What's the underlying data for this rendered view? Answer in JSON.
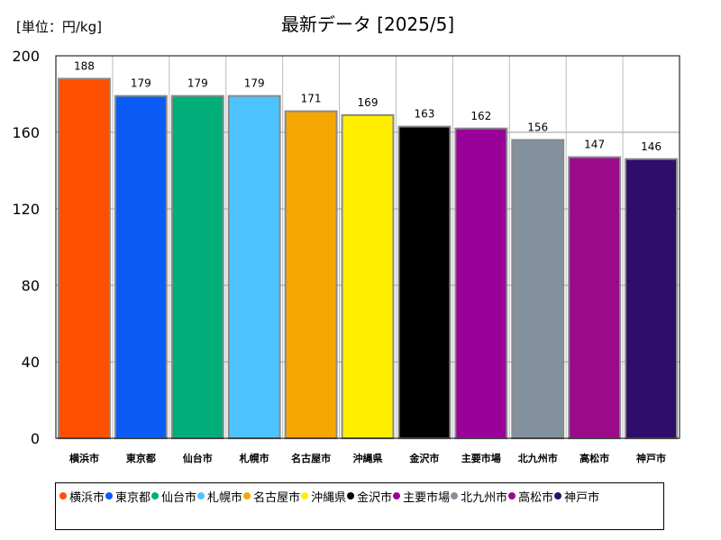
{
  "chart_data": {
    "type": "bar",
    "title": "最新データ [2025/5]",
    "unit_label": "[単位：円/kg]",
    "categories": [
      "横浜市",
      "東京都",
      "仙台市",
      "札幌市",
      "名古屋市",
      "沖縄県",
      "金沢市",
      "主要市場",
      "北九州市",
      "高松市",
      "神戸市"
    ],
    "values": [
      188,
      179,
      179,
      179,
      171,
      169,
      163,
      162,
      156,
      147,
      146
    ],
    "colors": [
      "#ff4f00",
      "#0a5cf5",
      "#00ae7a",
      "#4ec3ff",
      "#f5a600",
      "#ffee00",
      "#000000",
      "#990099",
      "#83919e",
      "#9a0a8a",
      "#2e0e6a"
    ],
    "ylim": [
      0,
      200
    ],
    "yticks": [
      0,
      40,
      80,
      120,
      160,
      200
    ],
    "grid": true,
    "legend": "bottom"
  }
}
